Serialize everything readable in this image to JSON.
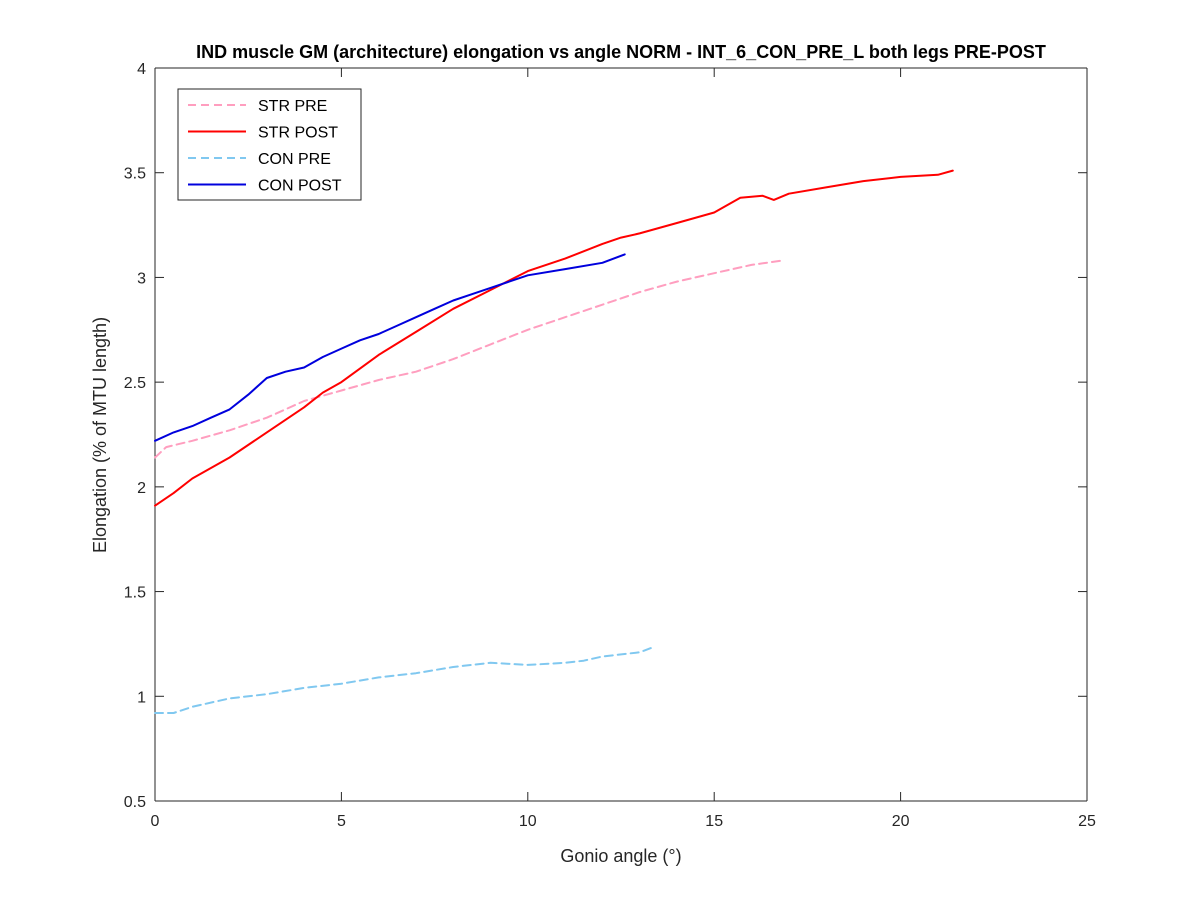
{
  "chart_data": {
    "type": "line",
    "title": "IND muscle GM (architecture) elongation vs angle NORM - INT_6_CON_PRE_L both legs PRE-POST",
    "xlabel": "Gonio angle (°)",
    "ylabel": "Elongation (% of MTU length)",
    "xlim": [
      0,
      25
    ],
    "ylim": [
      0.5,
      4
    ],
    "xticks": [
      0,
      5,
      10,
      15,
      20,
      25
    ],
    "yticks": [
      0.5,
      1,
      1.5,
      2,
      2.5,
      3,
      3.5,
      4
    ],
    "grid": false,
    "legend_position": "top-left",
    "series": [
      {
        "name": "STR PRE",
        "color": "#ff9ebf",
        "dash": "dashed",
        "x": [
          0,
          0.3,
          1,
          2,
          3,
          4,
          5,
          6,
          7,
          8,
          9,
          10,
          11,
          12,
          13,
          14,
          15,
          16,
          16.8
        ],
        "y": [
          2.14,
          2.19,
          2.22,
          2.27,
          2.33,
          2.41,
          2.46,
          2.51,
          2.55,
          2.61,
          2.68,
          2.75,
          2.81,
          2.87,
          2.93,
          2.98,
          3.02,
          3.06,
          3.08
        ]
      },
      {
        "name": "STR POST",
        "color": "#ff0000",
        "dash": "solid",
        "x": [
          0,
          0.5,
          1,
          2,
          3,
          4,
          4.5,
          5,
          6,
          7,
          8,
          9,
          10,
          11,
          12,
          12.5,
          13,
          14,
          15,
          15.7,
          16.3,
          16.6,
          17,
          18,
          19,
          20,
          21,
          21.4
        ],
        "y": [
          1.91,
          1.97,
          2.04,
          2.14,
          2.26,
          2.38,
          2.45,
          2.5,
          2.63,
          2.74,
          2.85,
          2.94,
          3.03,
          3.09,
          3.16,
          3.19,
          3.21,
          3.26,
          3.31,
          3.38,
          3.39,
          3.37,
          3.4,
          3.43,
          3.46,
          3.48,
          3.49,
          3.51
        ]
      },
      {
        "name": "CON PRE",
        "color": "#80c8f0",
        "dash": "dashed",
        "x": [
          0,
          0.5,
          1,
          2,
          3,
          4,
          5,
          6,
          7,
          8,
          9,
          10,
          11,
          11.5,
          12,
          13,
          13.3
        ],
        "y": [
          0.92,
          0.92,
          0.95,
          0.99,
          1.01,
          1.04,
          1.06,
          1.09,
          1.11,
          1.14,
          1.16,
          1.15,
          1.16,
          1.17,
          1.19,
          1.21,
          1.23
        ]
      },
      {
        "name": "CON POST",
        "color": "#0000dd",
        "dash": "solid",
        "x": [
          0,
          0.5,
          1,
          1.5,
          2,
          2.5,
          3,
          3.5,
          4,
          4.5,
          5,
          5.5,
          6,
          6.5,
          7,
          7.5,
          8,
          8.5,
          9,
          9.5,
          10,
          11,
          12,
          12.6
        ],
        "y": [
          2.22,
          2.26,
          2.29,
          2.33,
          2.37,
          2.44,
          2.52,
          2.55,
          2.57,
          2.62,
          2.66,
          2.7,
          2.73,
          2.77,
          2.81,
          2.85,
          2.89,
          2.92,
          2.95,
          2.98,
          3.01,
          3.04,
          3.07,
          3.11
        ]
      }
    ]
  }
}
